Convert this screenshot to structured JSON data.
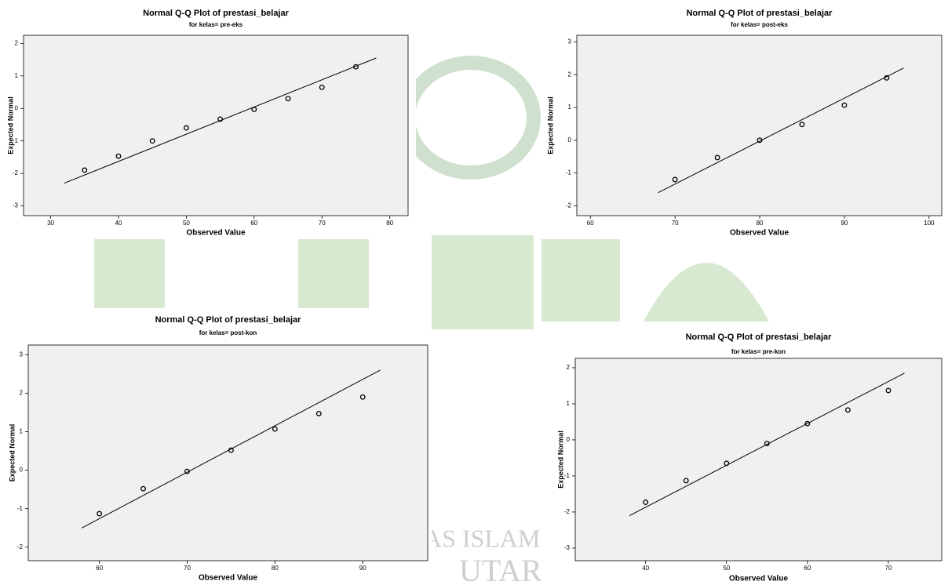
{
  "watermark": {
    "lines": [
      "AS ISLAM",
      "UTAR"
    ]
  },
  "chart_data": [
    {
      "type": "scatter",
      "title": "Normal Q-Q Plot of prestasi_belajar",
      "subtitle": "for kelas= pre-eks",
      "x_label": "Observed Value",
      "y_label": "Expected Normal",
      "x": [
        35,
        40,
        45,
        50,
        55,
        60,
        65,
        70,
        75
      ],
      "values": [
        -1.9,
        -1.47,
        -1.0,
        -0.6,
        -0.33,
        -0.03,
        0.3,
        0.65,
        1.28
      ],
      "reference_line": {
        "x": [
          32,
          78
        ],
        "y": [
          -2.3,
          1.55
        ]
      },
      "xlim": [
        26,
        82.7
      ],
      "ylim": [
        -3.3,
        2.25
      ],
      "xticks": [
        30,
        40,
        50,
        60,
        70,
        80
      ],
      "yticks": [
        -3,
        -2,
        -1,
        0,
        1,
        2
      ],
      "color": "#000000",
      "background": "#f0f0f0"
    },
    {
      "type": "scatter",
      "title": "Normal Q-Q Plot of prestasi_belajar",
      "subtitle": "for kelas= post-eks",
      "x_label": "Observed Value",
      "y_label": "Expected Normal",
      "x": [
        70,
        75,
        80,
        85,
        90,
        95
      ],
      "values": [
        -1.2,
        -0.53,
        0,
        0.48,
        1.07,
        1.9
      ],
      "reference_line": {
        "x": [
          68,
          97
        ],
        "y": [
          -1.6,
          2.2
        ]
      },
      "xlim": [
        58.4,
        101.5
      ],
      "ylim": [
        -2.3,
        3.2
      ],
      "xticks": [
        60,
        70,
        80,
        90,
        100
      ],
      "yticks": [
        -2,
        -1,
        0,
        1,
        2,
        3
      ],
      "color": "#000000",
      "background": "#f0f0f0"
    },
    {
      "type": "scatter",
      "title": "Normal Q-Q Plot of prestasi_belajar",
      "subtitle": "for kelas= post-kon",
      "x_label": "Observed Value",
      "y_label": "Expected Normal",
      "x": [
        60,
        65,
        70,
        75,
        80,
        85,
        90
      ],
      "values": [
        -1.13,
        -0.48,
        -0.03,
        0.52,
        1.07,
        1.47,
        1.9
      ],
      "reference_line": {
        "x": [
          58,
          92
        ],
        "y": [
          -1.5,
          2.6
        ]
      },
      "xlim": [
        51.9,
        97.4
      ],
      "ylim": [
        -2.35,
        3.25
      ],
      "xticks": [
        60,
        70,
        80,
        90
      ],
      "yticks": [
        -2,
        -1,
        0,
        1,
        2,
        3
      ],
      "color": "#000000",
      "background": "#f0f0f0"
    },
    {
      "type": "scatter",
      "title": "Normal Q-Q Plot of prestasi_belajar",
      "subtitle": "for kelas= pre-kon",
      "x_label": "Observed Value",
      "y_label": "Expected Normal",
      "x": [
        40,
        45,
        50,
        55,
        60,
        65,
        70
      ],
      "values": [
        -1.73,
        -1.13,
        -0.65,
        -0.1,
        0.45,
        0.83,
        1.37
      ],
      "reference_line": {
        "x": [
          38,
          72
        ],
        "y": [
          -2.1,
          1.85
        ]
      },
      "xlim": [
        31.3,
        76.6
      ],
      "ylim": [
        -3.35,
        2.26
      ],
      "xticks": [
        40,
        50,
        60,
        70
      ],
      "yticks": [
        -3,
        -2,
        -1,
        0,
        1,
        2
      ],
      "color": "#000000",
      "background": "#f0f0f0"
    }
  ]
}
